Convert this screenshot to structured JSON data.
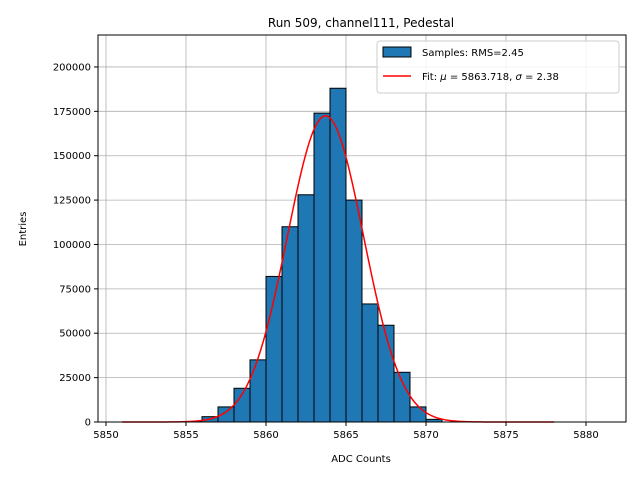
{
  "chart_data": {
    "type": "bar",
    "title": "Run 509, channel111, Pedestal",
    "xlabel": "ADC Counts",
    "ylabel": "Entries",
    "xlim": [
      5849.5,
      5882.5
    ],
    "ylim": [
      0,
      218000
    ],
    "xticks": [
      5850,
      5855,
      5860,
      5865,
      5870,
      5875,
      5880
    ],
    "yticks": [
      0,
      25000,
      50000,
      75000,
      100000,
      125000,
      150000,
      175000,
      200000
    ],
    "grid": true,
    "legend_position": "top-right",
    "histogram": {
      "name": "Samples: RMS=2.45",
      "color": "#1f77b4",
      "edgecolor": "#000000",
      "bins": [
        {
          "left": 5855,
          "right": 5856,
          "count": 300
        },
        {
          "left": 5856,
          "right": 5857,
          "count": 3000
        },
        {
          "left": 5857,
          "right": 5858,
          "count": 8500
        },
        {
          "left": 5858,
          "right": 5859,
          "count": 19000
        },
        {
          "left": 5859,
          "right": 5860,
          "count": 35000
        },
        {
          "left": 5860,
          "right": 5861,
          "count": 82000
        },
        {
          "left": 5861,
          "right": 5862,
          "count": 110000
        },
        {
          "left": 5862,
          "right": 5863,
          "count": 128000
        },
        {
          "left": 5863,
          "right": 5864,
          "count": 174000
        },
        {
          "left": 5864,
          "right": 5865,
          "count": 188000
        },
        {
          "left": 5865,
          "right": 5866,
          "count": 125000
        },
        {
          "left": 5866,
          "right": 5867,
          "count": 66500
        },
        {
          "left": 5867,
          "right": 5868,
          "count": 54500
        },
        {
          "left": 5868,
          "right": 5869,
          "count": 28000
        },
        {
          "left": 5869,
          "right": 5870,
          "count": 8500
        },
        {
          "left": 5870,
          "right": 5871,
          "count": 1500
        }
      ]
    },
    "fit": {
      "name_prefix": "Fit: ",
      "mu_symbol": "μ",
      "mu_text": " = 5863.718, ",
      "sigma_symbol": "σ",
      "sigma_text": " = 2.38",
      "color": "#ff0000",
      "mu": 5863.718,
      "sigma": 2.38,
      "amplitude": 172500,
      "x_range": [
        5851,
        5878
      ]
    }
  }
}
